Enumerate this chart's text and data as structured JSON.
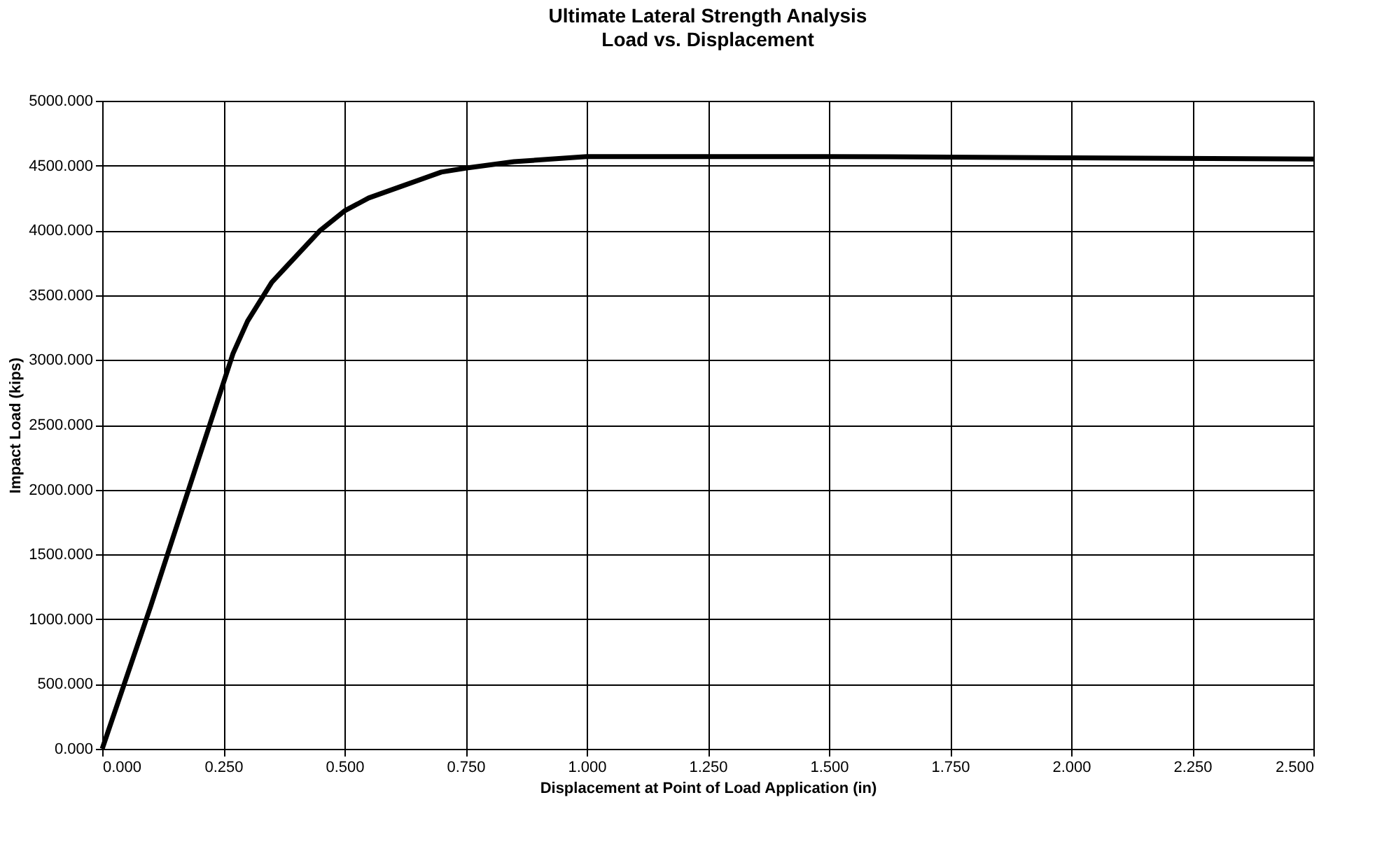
{
  "chart_data": {
    "type": "line",
    "title": "Ultimate Lateral Strength Analysis",
    "subtitle": "Load vs. Displacement",
    "xlabel": "Displacement at Point of Load Application (in)",
    "ylabel": "Impact Load (kips)",
    "x": [
      0,
      0.1,
      0.2,
      0.27,
      0.3,
      0.35,
      0.375,
      0.45,
      0.5,
      0.55,
      0.625,
      0.7,
      0.75,
      0.85,
      1.0,
      1.5,
      2.0,
      2.5
    ],
    "series": [
      {
        "color": "#000000",
        "values": [
          0,
          1100,
          2250,
          3050,
          3300,
          3600,
          3700,
          4000,
          4150,
          4250,
          4350,
          4450,
          4480,
          4530,
          4570,
          4570,
          4560,
          4550
        ]
      }
    ],
    "xlim": [
      0,
      2.5
    ],
    "xticks": [
      {
        "value": 0,
        "label": "0.000"
      },
      {
        "value": 0.25,
        "label": "0.250"
      },
      {
        "value": 0.5,
        "label": "0.500"
      },
      {
        "value": 0.75,
        "label": "0.750"
      },
      {
        "value": 1,
        "label": "1.000"
      },
      {
        "value": 1.25,
        "label": "1.250"
      },
      {
        "value": 1.5,
        "label": "1.500"
      },
      {
        "value": 1.75,
        "label": "1.750"
      },
      {
        "value": 2,
        "label": "2.000"
      },
      {
        "value": 2.25,
        "label": "2.250"
      },
      {
        "value": 2.5,
        "label": "2.500"
      }
    ],
    "ylim": [
      0,
      5000
    ],
    "yticks": [
      {
        "value": 0,
        "label": "0.000"
      },
      {
        "value": 500,
        "label": "500.000"
      },
      {
        "value": 1000,
        "label": "1000.000"
      },
      {
        "value": 1500,
        "label": "1500.000"
      },
      {
        "value": 2000,
        "label": "2000.000"
      },
      {
        "value": 2500,
        "label": "2500.000"
      },
      {
        "value": 3000,
        "label": "3000.000"
      },
      {
        "value": 3500,
        "label": "3500.000"
      },
      {
        "value": 4000,
        "label": "4000.000"
      },
      {
        "value": 4500,
        "label": "4500.000"
      },
      {
        "value": 5000,
        "label": "5000.000"
      }
    ],
    "grid": true,
    "legend": false,
    "marker": "none",
    "line_style": "solid"
  }
}
